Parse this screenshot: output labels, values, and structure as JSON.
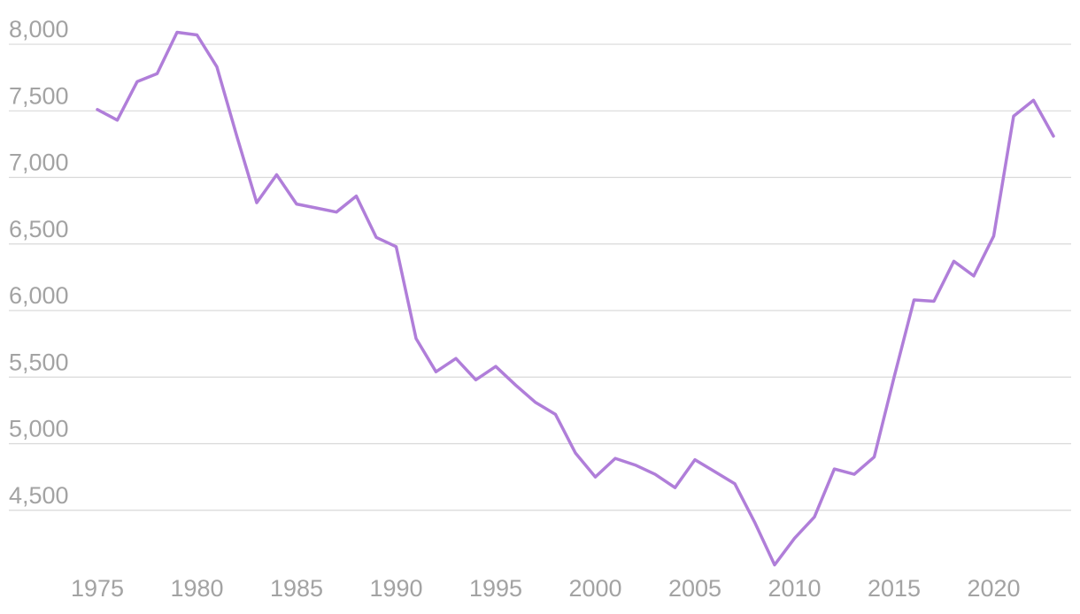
{
  "chart_data": {
    "type": "line",
    "title": "",
    "xlabel": "",
    "ylabel": "",
    "xlim": [
      1975,
      2023
    ],
    "ylim": [
      4000,
      8100
    ],
    "grid": "horizontal",
    "legend": "none",
    "line_color": "#b07ed9",
    "grid_color": "#d9d9d9",
    "tick_color": "#a3a3a3",
    "y_ticks": [
      {
        "value": 4500,
        "label": "4,500"
      },
      {
        "value": 5000,
        "label": "5,000"
      },
      {
        "value": 5500,
        "label": "5,500"
      },
      {
        "value": 6000,
        "label": "6,000"
      },
      {
        "value": 6500,
        "label": "6,500"
      },
      {
        "value": 7000,
        "label": "7,000"
      },
      {
        "value": 7500,
        "label": "7,500"
      },
      {
        "value": 8000,
        "label": "8,000"
      }
    ],
    "x_ticks": [
      {
        "value": 1975,
        "label": "1975"
      },
      {
        "value": 1980,
        "label": "1980"
      },
      {
        "value": 1985,
        "label": "1985"
      },
      {
        "value": 1990,
        "label": "1990"
      },
      {
        "value": 1995,
        "label": "1995"
      },
      {
        "value": 2000,
        "label": "2000"
      },
      {
        "value": 2005,
        "label": "2005"
      },
      {
        "value": 2010,
        "label": "2010"
      },
      {
        "value": 2015,
        "label": "2015"
      },
      {
        "value": 2020,
        "label": "2020"
      }
    ],
    "series": [
      {
        "x": [
          1975,
          1976,
          1977,
          1978,
          1979,
          1980,
          1981,
          1982,
          1983,
          1984,
          1985,
          1986,
          1987,
          1988,
          1989,
          1990,
          1991,
          1992,
          1993,
          1994,
          1995,
          1996,
          1997,
          1998,
          1999,
          2000,
          2001,
          2002,
          2003,
          2004,
          2005,
          2006,
          2007,
          2008,
          2009,
          2010,
          2011,
          2012,
          2013,
          2014,
          2015,
          2016,
          2017,
          2018,
          2019,
          2020,
          2021,
          2022,
          2023
        ],
        "values": [
          7510,
          7430,
          7720,
          7780,
          8090,
          8070,
          7830,
          7310,
          6810,
          7020,
          6800,
          6770,
          6740,
          6860,
          6550,
          6480,
          5790,
          5540,
          5640,
          5480,
          5580,
          5440,
          5310,
          5220,
          4930,
          4750,
          4890,
          4840,
          4770,
          4670,
          4880,
          4790,
          4700,
          4410,
          4090,
          4290,
          4450,
          4810,
          4770,
          4900,
          5500,
          6080,
          6070,
          6370,
          6260,
          6560,
          7460,
          7580,
          7310
        ]
      }
    ]
  }
}
